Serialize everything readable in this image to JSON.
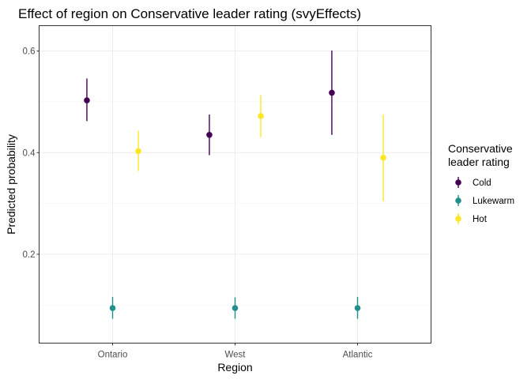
{
  "chart_data": {
    "type": "scatter",
    "title": "Effect of region on Conservative leader rating (svyEffects)",
    "xlabel": "Region",
    "ylabel": "Predicted probability",
    "categories": [
      "Ontario",
      "West",
      "Atlantic"
    ],
    "ylim": [
      0.025,
      0.65
    ],
    "yticks": [
      "0.2",
      "0.4",
      "0.6"
    ],
    "grid": true,
    "legend_position": "right",
    "legend_title_lines": [
      "Conservative",
      "leader rating"
    ],
    "series": [
      {
        "name": "Cold",
        "color": "#440154",
        "values": [
          0.503,
          0.435,
          0.518
        ],
        "lower": [
          0.462,
          0.395,
          0.435
        ],
        "upper": [
          0.546,
          0.475,
          0.601
        ]
      },
      {
        "name": "Lukewarm",
        "color": "#21908C",
        "values": [
          0.094,
          0.094,
          0.094
        ],
        "lower": [
          0.073,
          0.073,
          0.073
        ],
        "upper": [
          0.116,
          0.115,
          0.116
        ]
      },
      {
        "name": "Hot",
        "color": "#FDE725",
        "values": [
          0.403,
          0.472,
          0.39
        ],
        "lower": [
          0.364,
          0.43,
          0.304
        ],
        "upper": [
          0.443,
          0.513,
          0.475
        ]
      }
    ]
  }
}
